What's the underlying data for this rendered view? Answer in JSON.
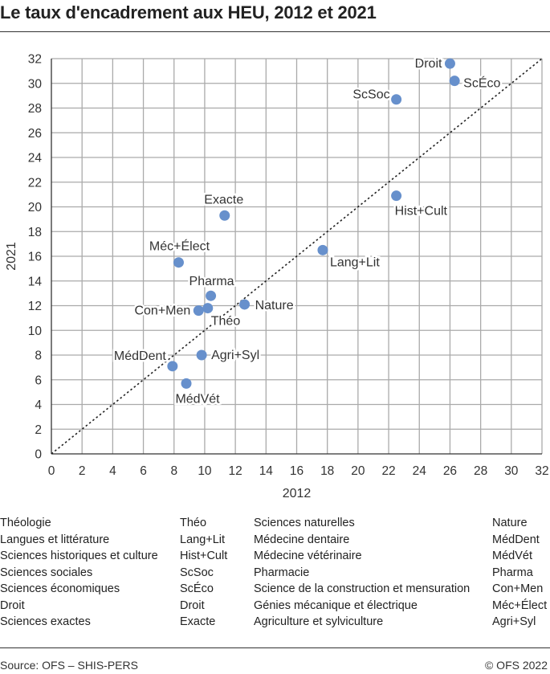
{
  "title": "Le taux d'encadrement aux HEU, 2012 et 2021",
  "chart_data": {
    "type": "scatter",
    "xlabel": "2012",
    "ylabel": "2021",
    "xlim": [
      0,
      32
    ],
    "ylim": [
      0,
      32
    ],
    "xticks": [
      0,
      2,
      4,
      6,
      8,
      10,
      12,
      14,
      16,
      18,
      20,
      22,
      24,
      26,
      28,
      30,
      32
    ],
    "yticks": [
      0,
      2,
      4,
      6,
      8,
      10,
      12,
      14,
      16,
      18,
      20,
      22,
      24,
      26,
      28,
      30,
      32
    ],
    "grid": true,
    "reference_line": "y = x (dotted)",
    "point_color": "#6790cc",
    "points": [
      {
        "label": "Droit",
        "x": 26.0,
        "y": 31.6
      },
      {
        "label": "ScÉco",
        "x": 26.3,
        "y": 30.2
      },
      {
        "label": "ScSoc",
        "x": 22.5,
        "y": 28.7
      },
      {
        "label": "Hist+Cult",
        "x": 22.5,
        "y": 20.9
      },
      {
        "label": "Exacte",
        "x": 11.3,
        "y": 19.3
      },
      {
        "label": "Lang+Lit",
        "x": 17.7,
        "y": 16.5
      },
      {
        "label": "Méc+Élect",
        "x": 8.3,
        "y": 15.5
      },
      {
        "label": "Pharma",
        "x": 10.4,
        "y": 12.8
      },
      {
        "label": "Con+Men",
        "x": 9.6,
        "y": 11.6
      },
      {
        "label": "Nature",
        "x": 12.6,
        "y": 12.1
      },
      {
        "label": "Théo",
        "x": 10.2,
        "y": 11.8
      },
      {
        "label": "Agri+Syl",
        "x": 9.8,
        "y": 8.0
      },
      {
        "label": "MédDent",
        "x": 7.9,
        "y": 7.1
      },
      {
        "label": "MédVét",
        "x": 8.8,
        "y": 5.7
      }
    ]
  },
  "legend": [
    [
      {
        "name": "Théologie",
        "abbr": "Théo"
      },
      {
        "name": "Langues et littérature",
        "abbr": "Lang+Lit"
      },
      {
        "name": "Sciences historiques et culture",
        "abbr": "Hist+Cult"
      },
      {
        "name": "Sciences sociales",
        "abbr": "ScSoc"
      },
      {
        "name": "Sciences économiques",
        "abbr": "ScÉco"
      },
      {
        "name": "Droit",
        "abbr": "Droit"
      },
      {
        "name": "Sciences exactes",
        "abbr": "Exacte"
      }
    ],
    [
      {
        "name": "Sciences naturelles",
        "abbr": "Nature"
      },
      {
        "name": "Médecine dentaire",
        "abbr": "MédDent"
      },
      {
        "name": "Médecine vétérinaire",
        "abbr": "MédVét"
      },
      {
        "name": "Pharmacie",
        "abbr": "Pharma"
      },
      {
        "name": "Science de la construction et mensuration",
        "abbr": "Con+Men"
      },
      {
        "name": "Génies mécanique et électrique",
        "abbr": "Méc+Élect"
      },
      {
        "name": "Agriculture et sylviculture",
        "abbr": "Agri+Syl"
      }
    ]
  ],
  "footer": {
    "source": "Source: OFS – SHIS-PERS",
    "copyright": "© OFS 2022"
  }
}
